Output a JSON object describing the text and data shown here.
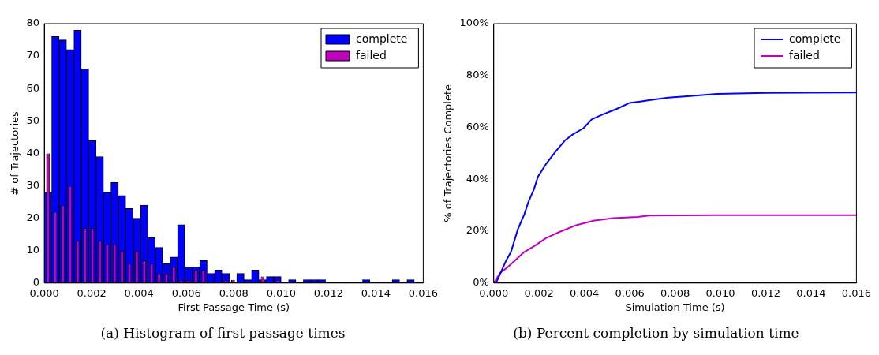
{
  "chart_data": [
    {
      "type": "histogram",
      "title": "(a) Histogram of first passage times",
      "xlabel": "First Passage Time (s)",
      "ylabel": "# of Trajectories",
      "bins": [
        0,
        0.0003125,
        0.000625,
        0.0009375,
        0.00125,
        0.0015625,
        0.001875,
        0.0021875,
        0.0025,
        0.0028125,
        0.003125,
        0.0034375,
        0.00375,
        0.0040625,
        0.004375,
        0.0046875,
        0.005,
        0.0053125,
        0.005625,
        0.0059375,
        0.00625,
        0.0065625,
        0.006875,
        0.0071875,
        0.0075,
        0.0078125,
        0.008125,
        0.0084375,
        0.00875,
        0.0090625,
        0.009375,
        0.0096875,
        0.01,
        0.0103125,
        0.010625,
        0.0109375,
        0.01125,
        0.0115625,
        0.011875,
        0.0121875,
        0.0125,
        0.0128125,
        0.013125,
        0.0134375,
        0.01375,
        0.0140625,
        0.014375,
        0.0146875,
        0.015,
        0.0153125,
        0.015625
      ],
      "series": [
        {
          "name": "complete",
          "color": "#0000ff",
          "values": [
            28,
            76,
            75,
            72,
            78,
            66,
            44,
            39,
            28,
            31,
            27,
            23,
            20,
            24,
            14,
            11,
            6,
            8,
            18,
            5,
            5,
            7,
            3,
            4,
            3,
            0,
            3,
            1,
            4,
            1,
            2,
            2,
            0,
            1,
            0,
            1,
            1,
            1,
            0,
            0,
            0,
            0,
            0,
            1,
            0,
            0,
            0,
            1,
            0,
            1
          ]
        },
        {
          "name": "failed",
          "color": "#bf00bf",
          "values": [
            40,
            22,
            24,
            30,
            13,
            17,
            17,
            13,
            12,
            12,
            10,
            6,
            10,
            7,
            6,
            3,
            3,
            5,
            1,
            1,
            4,
            4,
            0,
            0,
            1,
            1,
            0,
            0,
            0,
            2,
            0,
            1,
            0,
            0,
            0,
            0,
            0,
            0,
            0,
            0,
            0,
            0,
            0,
            0,
            0,
            0,
            0,
            0,
            0,
            0
          ]
        }
      ],
      "xlim": [
        0,
        0.016
      ],
      "xticks": [
        {
          "value": 0,
          "label": "0.000"
        },
        {
          "value": 0.002,
          "label": "0.002"
        },
        {
          "value": 0.004,
          "label": "0.004"
        },
        {
          "value": 0.006,
          "label": "0.006"
        },
        {
          "value": 0.008,
          "label": "0.008"
        },
        {
          "value": 0.01,
          "label": "0.010"
        },
        {
          "value": 0.012,
          "label": "0.012"
        },
        {
          "value": 0.014,
          "label": "0.014"
        },
        {
          "value": 0.016,
          "label": "0.016"
        }
      ],
      "ylim": [
        0,
        80
      ],
      "yticks": [
        0,
        10,
        20,
        30,
        40,
        50,
        60,
        70,
        80
      ],
      "legend": "top right"
    },
    {
      "type": "line",
      "title": "(b) Percent completion by simulation time",
      "xlabel": "Simulation Time (s)",
      "ylabel": "% of Trajectories Complete",
      "series": [
        {
          "name": "complete",
          "color": "#0000ff",
          "x": [
            0.0001,
            0.00052,
            0.00076,
            0.00106,
            0.00135,
            0.00153,
            0.00177,
            0.00195,
            0.0023,
            0.00272,
            0.00313,
            0.00349,
            0.00396,
            0.00432,
            0.0048,
            0.00539,
            0.00598,
            0.00646,
            0.00686,
            0.0077,
            0.00865,
            0.00985,
            0.012,
            0.016
          ],
          "values": [
            0,
            8.2,
            12,
            20.7,
            26.5,
            31.3,
            36.1,
            41,
            45.8,
            50.6,
            54.9,
            57.3,
            59.7,
            63.1,
            65,
            67,
            69.4,
            70,
            70.5,
            71.5,
            72.1,
            72.9,
            73.3,
            73.5
          ]
        },
        {
          "name": "failed",
          "color": "#bf00bf",
          "x": [
            0,
            0.00028,
            0.00064,
            0.001,
            0.00135,
            0.00183,
            0.0023,
            0.0029,
            0.0036,
            0.00444,
            0.00527,
            0.00634,
            0.00686,
            0.00985,
            0.016
          ],
          "values": [
            0,
            3.9,
            6.3,
            9.2,
            12,
            14.5,
            17.3,
            19.7,
            22.2,
            24.1,
            25,
            25.5,
            26,
            26.2,
            26.2
          ]
        }
      ],
      "xlim": [
        0,
        0.016
      ],
      "xticks": [
        {
          "value": 0,
          "label": "0.000"
        },
        {
          "value": 0.002,
          "label": "0.002"
        },
        {
          "value": 0.004,
          "label": "0.004"
        },
        {
          "value": 0.006,
          "label": "0.006"
        },
        {
          "value": 0.008,
          "label": "0.008"
        },
        {
          "value": 0.01,
          "label": "0.010"
        },
        {
          "value": 0.012,
          "label": "0.012"
        },
        {
          "value": 0.014,
          "label": "0.014"
        },
        {
          "value": 0.016,
          "label": "0.016"
        }
      ],
      "ylim": [
        0,
        100
      ],
      "yticks": [
        {
          "value": 0,
          "label": "0%"
        },
        {
          "value": 20,
          "label": "20%"
        },
        {
          "value": 40,
          "label": "40%"
        },
        {
          "value": 60,
          "label": "60%"
        },
        {
          "value": 80,
          "label": "80%"
        },
        {
          "value": 100,
          "label": "100%"
        }
      ],
      "legend": "top right"
    }
  ]
}
